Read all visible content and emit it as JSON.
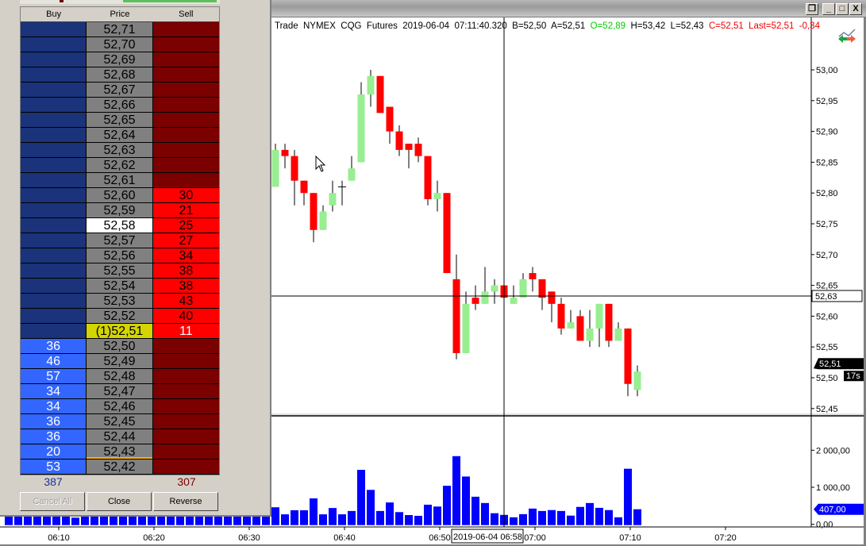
{
  "chart_window": {
    "info": {
      "prefix": "Trade  NYMEX  CQG  Futures  2019-06-04  07:11:40.320  B=52,50  A=52,51  ",
      "open": "O=52,89",
      "mid": "  H=53,42  L=52,43  ",
      "close": "C=52,51  Last=52,51  -0,34"
    },
    "buttons": {
      "restore": "❐",
      "minimize": "_",
      "maximize": "□",
      "close": "X"
    },
    "crosshair": {
      "price_label": "52,63",
      "time_label": "2019-06-04 06:58"
    },
    "last_price_label": "52,51",
    "timer_label": "17s",
    "last_volume_label": "407,00",
    "colors": {
      "up": "#98ee90",
      "down": "#ff0000",
      "volume": "#0000ff"
    }
  },
  "chart_data": {
    "type": "candlestick",
    "price_axis": {
      "ticks": [
        "53,00",
        "52,95",
        "52,90",
        "52,85",
        "52,80",
        "52,75",
        "52,70",
        "52,65",
        "52,60",
        "52,55",
        "52,50",
        "52,45"
      ],
      "tick_values": [
        53.0,
        52.95,
        52.9,
        52.85,
        52.8,
        52.75,
        52.7,
        52.65,
        52.6,
        52.55,
        52.5,
        52.45
      ]
    },
    "volume_axis": {
      "ticks": [
        "2 000,00",
        "1 000,00",
        "0,00"
      ],
      "tick_values": [
        2000,
        1000,
        0
      ]
    },
    "time_axis": {
      "ticks": [
        "06:10",
        "06:20",
        "06:30",
        "06:40",
        "06:50",
        "07:00",
        "07:10",
        "07:20"
      ]
    },
    "candles_start": "06:33",
    "candles": [
      [
        52.81,
        52.88,
        52.81,
        52.87
      ],
      [
        52.87,
        52.88,
        52.84,
        52.86
      ],
      [
        52.86,
        52.87,
        52.78,
        52.82
      ],
      [
        52.82,
        52.82,
        52.78,
        52.8
      ],
      [
        52.8,
        52.8,
        52.72,
        52.74
      ],
      [
        52.74,
        52.78,
        52.74,
        52.77
      ],
      [
        52.78,
        52.82,
        52.77,
        52.8
      ],
      [
        52.81,
        52.82,
        52.78,
        52.81
      ],
      [
        52.82,
        52.86,
        52.82,
        52.84
      ],
      [
        52.85,
        52.98,
        52.85,
        52.96
      ],
      [
        52.96,
        53.0,
        52.94,
        52.99
      ],
      [
        52.99,
        52.99,
        52.93,
        52.93
      ],
      [
        52.94,
        52.94,
        52.88,
        52.9
      ],
      [
        52.9,
        52.91,
        52.86,
        52.87
      ],
      [
        52.88,
        52.88,
        52.84,
        52.87
      ],
      [
        52.88,
        52.89,
        52.85,
        52.86
      ],
      [
        52.86,
        52.86,
        52.78,
        52.79
      ],
      [
        52.79,
        52.82,
        52.77,
        52.8
      ],
      [
        52.8,
        52.8,
        52.67,
        52.67
      ],
      [
        52.66,
        52.7,
        52.53,
        52.54
      ],
      [
        52.54,
        52.64,
        52.54,
        52.62
      ],
      [
        52.63,
        52.65,
        52.61,
        52.62
      ],
      [
        52.62,
        52.68,
        52.62,
        52.64
      ],
      [
        52.64,
        52.66,
        52.62,
        52.65
      ],
      [
        52.65,
        52.65,
        52.63,
        52.63
      ],
      [
        52.62,
        52.65,
        52.62,
        52.63
      ],
      [
        52.63,
        52.67,
        52.63,
        52.66
      ],
      [
        52.67,
        52.68,
        52.64,
        52.66
      ],
      [
        52.66,
        52.66,
        52.61,
        52.63
      ],
      [
        52.64,
        52.64,
        52.59,
        52.62
      ],
      [
        52.62,
        52.63,
        52.57,
        52.58
      ],
      [
        52.58,
        52.61,
        52.58,
        52.59
      ],
      [
        52.6,
        52.61,
        52.56,
        52.56
      ],
      [
        52.56,
        52.61,
        52.55,
        52.58
      ],
      [
        52.58,
        52.62,
        52.55,
        52.62
      ],
      [
        52.62,
        52.62,
        52.55,
        52.56
      ],
      [
        52.56,
        52.59,
        52.56,
        52.58
      ],
      [
        52.58,
        52.58,
        52.47,
        52.49
      ],
      [
        52.48,
        52.52,
        52.47,
        52.51
      ]
    ],
    "volumes_start": "06:05",
    "volumes": [
      300,
      300,
      300,
      300,
      300,
      300,
      300,
      180,
      300,
      300,
      300,
      300,
      300,
      300,
      300,
      300,
      300,
      300,
      300,
      300,
      300,
      300,
      300,
      300,
      300,
      300,
      300,
      300,
      460,
      270,
      380,
      380,
      700,
      270,
      440,
      270,
      360,
      1470,
      930,
      360,
      590,
      330,
      250,
      230,
      530,
      480,
      1040,
      1840,
      1290,
      745,
      575,
      300,
      255,
      190,
      275,
      425,
      360,
      385,
      360,
      235,
      470,
      575,
      445,
      385,
      190,
      1500,
      407
    ]
  },
  "dom": {
    "headers": {
      "buy": "Buy",
      "price": "Price",
      "sell": "Sell"
    },
    "rows": [
      {
        "price": "52,71",
        "buy": "",
        "sell": ""
      },
      {
        "price": "52,70",
        "buy": "",
        "sell": ""
      },
      {
        "price": "52,69",
        "buy": "",
        "sell": ""
      },
      {
        "price": "52,68",
        "buy": "",
        "sell": ""
      },
      {
        "price": "52,67",
        "buy": "",
        "sell": ""
      },
      {
        "price": "52,66",
        "buy": "",
        "sell": ""
      },
      {
        "price": "52,65",
        "buy": "",
        "sell": ""
      },
      {
        "price": "52,64",
        "buy": "",
        "sell": ""
      },
      {
        "price": "52,63",
        "buy": "",
        "sell": ""
      },
      {
        "price": "52,62",
        "buy": "",
        "sell": ""
      },
      {
        "price": "52,61",
        "buy": "",
        "sell": ""
      },
      {
        "price": "52,60",
        "buy": "",
        "sell": "30"
      },
      {
        "price": "52,59",
        "buy": "",
        "sell": "21"
      },
      {
        "price": "52,58",
        "buy": "",
        "sell": "25",
        "highlight": true
      },
      {
        "price": "52,57",
        "buy": "",
        "sell": "27"
      },
      {
        "price": "52,56",
        "buy": "",
        "sell": "34"
      },
      {
        "price": "52,55",
        "buy": "",
        "sell": "38"
      },
      {
        "price": "52,54",
        "buy": "",
        "sell": "38"
      },
      {
        "price": "52,53",
        "buy": "",
        "sell": "43"
      },
      {
        "price": "52,52",
        "buy": "",
        "sell": "40"
      },
      {
        "price": "(1)52,51",
        "buy": "",
        "sell": "11",
        "last": true
      },
      {
        "price": "52,50",
        "buy": "36",
        "sell": ""
      },
      {
        "price": "52,49",
        "buy": "46",
        "sell": ""
      },
      {
        "price": "52,48",
        "buy": "57",
        "sell": ""
      },
      {
        "price": "52,47",
        "buy": "34",
        "sell": ""
      },
      {
        "price": "52,46",
        "buy": "34",
        "sell": ""
      },
      {
        "price": "52,45",
        "buy": "36",
        "sell": ""
      },
      {
        "price": "52,44",
        "buy": "36",
        "sell": ""
      },
      {
        "price": "52,43",
        "buy": "20",
        "sell": "",
        "marked": true
      },
      {
        "price": "52,42",
        "buy": "53",
        "sell": ""
      }
    ],
    "total_buy": "387",
    "total_sell": "307",
    "buttons": {
      "cancel_all": "Cancel All",
      "close": "Close",
      "reverse": "Reverse"
    }
  }
}
